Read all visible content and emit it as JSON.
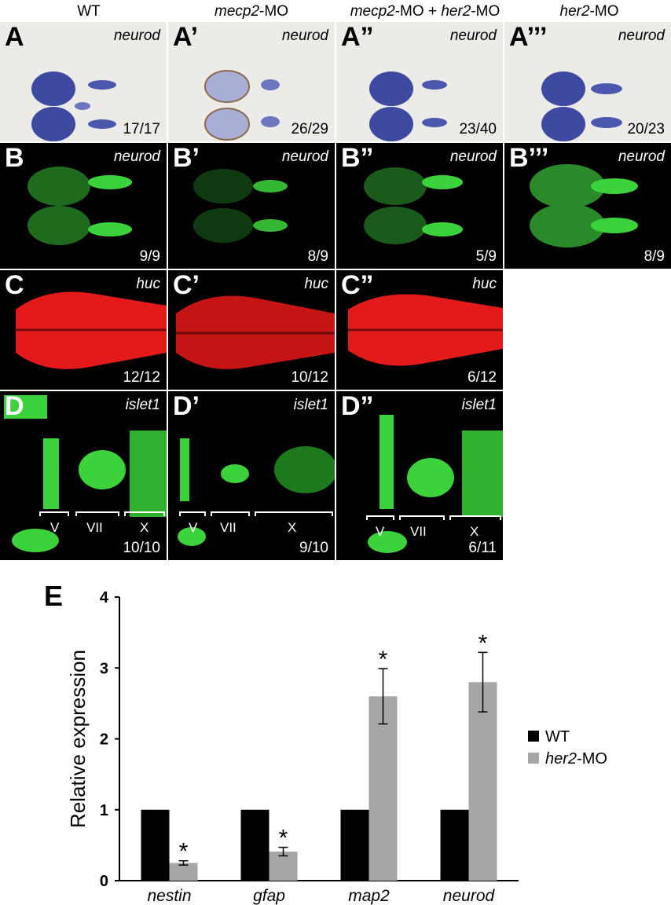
{
  "columns": {
    "c1": {
      "pre": "WT",
      "gene1": "",
      "mid": "",
      "gene2": "",
      "post": ""
    },
    "c2": {
      "pre": "",
      "gene1": "mecp2",
      "mid": "-MO",
      "gene2": "",
      "post": ""
    },
    "c3": {
      "pre": "",
      "gene1": "mecp2",
      "mid": "-MO + ",
      "gene2": "her2",
      "post": "-MO"
    },
    "c4": {
      "pre": "",
      "gene1": "her2",
      "mid": "-MO",
      "gene2": "",
      "post": ""
    }
  },
  "rowA": {
    "letters": [
      "A",
      "A’",
      "A”",
      "A’’’"
    ],
    "gene": "neurod",
    "counts": [
      "17/17",
      "26/29",
      "23/40",
      "20/23"
    ]
  },
  "rowB": {
    "letters": [
      "B",
      "B’",
      "B”",
      "B’’’"
    ],
    "gene": "neurod",
    "counts": [
      "9/9",
      "8/9",
      "5/9",
      "8/9"
    ]
  },
  "rowC": {
    "letters": [
      "C",
      "C’",
      "C”"
    ],
    "gene": "huc",
    "counts": [
      "12/12",
      "10/12",
      "6/12"
    ]
  },
  "rowD": {
    "letters": [
      "D",
      "D’",
      "D”"
    ],
    "gene": "islet1",
    "counts": [
      "10/10",
      "9/10",
      "6/11"
    ],
    "nuclei": [
      "V",
      "VII",
      "X"
    ]
  },
  "panelE": {
    "letter": "E"
  },
  "chart_data": {
    "type": "bar",
    "categories": [
      "nestin",
      "gfap",
      "map2",
      "neurod"
    ],
    "series": [
      {
        "name": "WT",
        "values": [
          1,
          1,
          1,
          1
        ],
        "color": "#000000"
      },
      {
        "name": "her2-MO",
        "values": [
          0.25,
          0.41,
          2.6,
          2.8
        ],
        "errors": [
          0.03,
          0.06,
          0.39,
          0.42
        ],
        "color": "#a6a6a6"
      }
    ],
    "significance": [
      "*",
      "*",
      "*",
      "*"
    ],
    "ylabel": "Relative expression",
    "ylim": [
      0,
      4
    ],
    "yticks": [
      "0",
      "1",
      "2",
      "3",
      "4"
    ],
    "legend": {
      "placement": "right",
      "entries": [
        {
          "pre": "",
          "italic": "",
          "post": "WT"
        },
        {
          "pre": "",
          "italic": "her2",
          "post": "-MO"
        }
      ]
    }
  }
}
